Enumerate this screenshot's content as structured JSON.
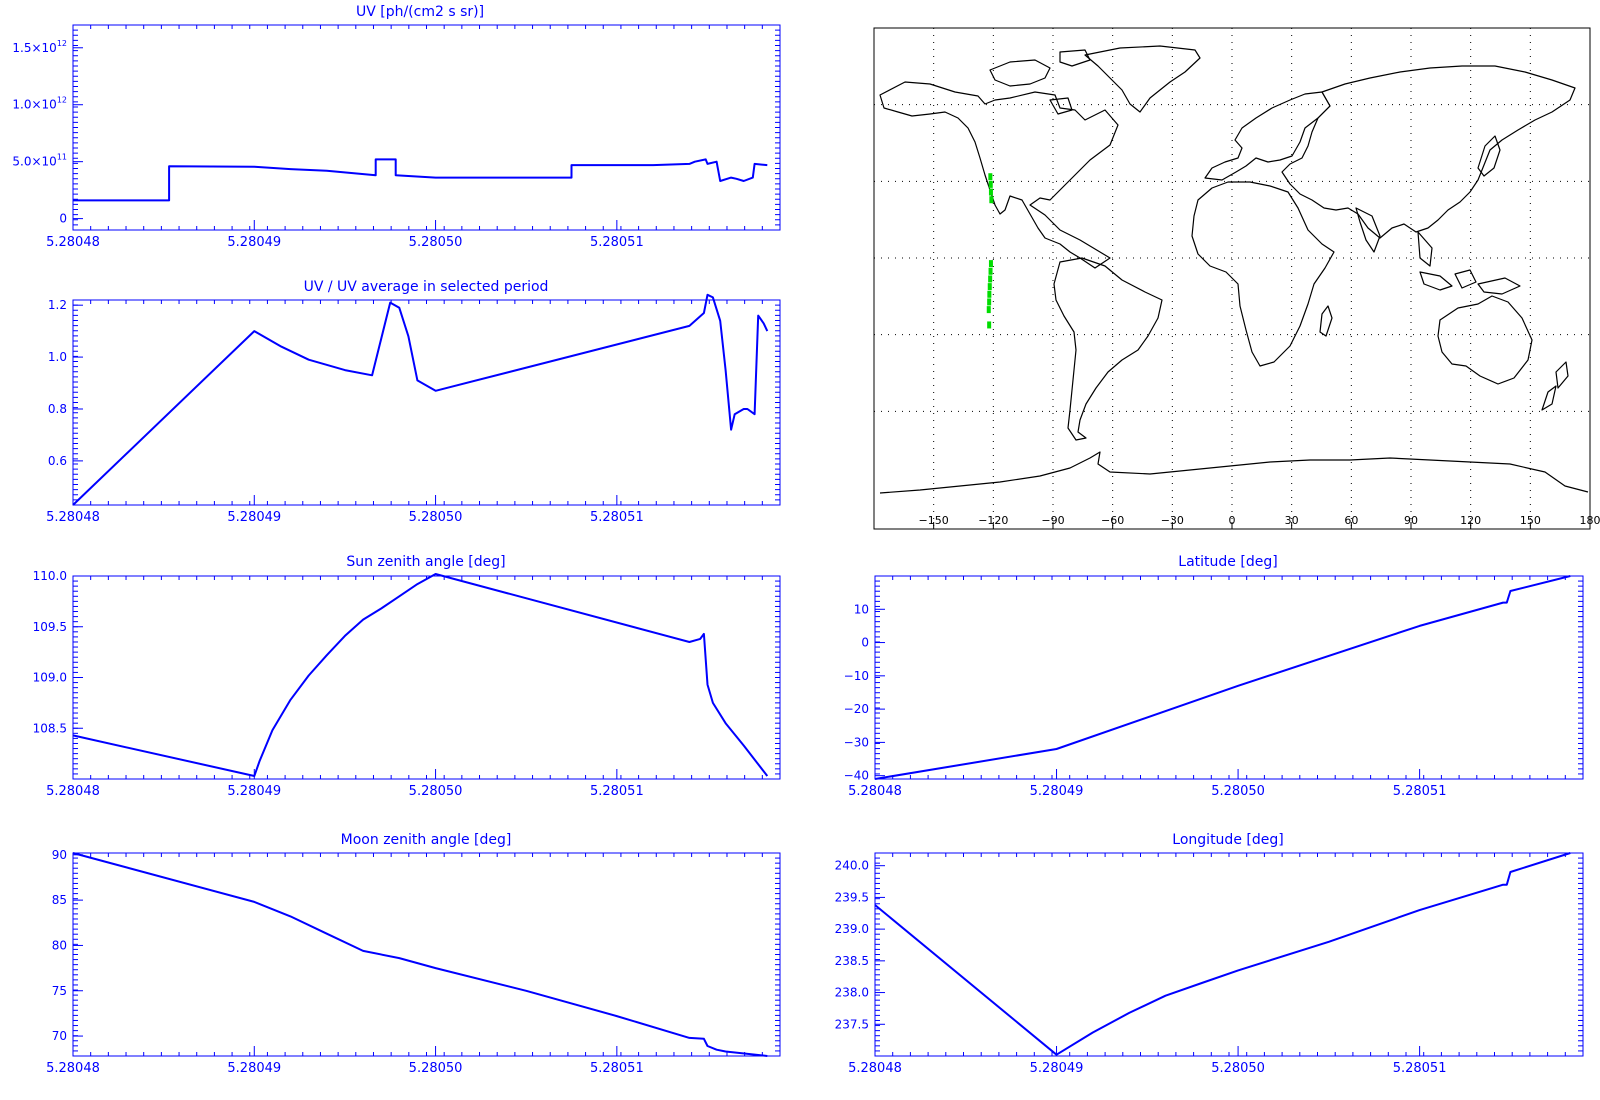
{
  "colors": {
    "plot": "#0000ff",
    "map_frame": "#000000",
    "coastline": "#000000",
    "track": "#00dd00",
    "background": "#ffffff"
  },
  "chart_data": [
    {
      "id": "uv",
      "type": "line",
      "title": "UV [ph/(cm2 s sr)]",
      "x_ticks": [
        "5.28048",
        "5.28049",
        "5.28050",
        "5.28051"
      ],
      "x_tick_values": [
        5.28048,
        5.28049,
        5.2805,
        5.28051
      ],
      "xlim": [
        5.28048,
        5.280519
      ],
      "y_ticks": [
        {
          "value": 0,
          "mantissa": "0",
          "exp": ""
        },
        {
          "value": 500000000000.0,
          "mantissa": "5.0×10",
          "exp": "11"
        },
        {
          "value": 1000000000000.0,
          "mantissa": "1.0×10",
          "exp": "12"
        },
        {
          "value": 1500000000000.0,
          "mantissa": "1.5×10",
          "exp": "12"
        }
      ],
      "ylim": [
        -100000000000.0,
        1700000000000.0
      ],
      "series": [
        {
          "x": [
            5.28048,
            5.2804853,
            5.2804853,
            5.28049,
            5.280492,
            5.280494,
            5.2804967,
            5.2804967,
            5.2804975,
            5.2804978,
            5.2804978,
            5.2805,
            5.2805075,
            5.2805075,
            5.280512,
            5.280514,
            5.2805143,
            5.2805149,
            5.280515,
            5.2805155,
            5.2805157,
            5.2805163,
            5.2805166,
            5.280517,
            5.2805175,
            5.2805176,
            5.2805183
          ],
          "y": [
            160000000000.0,
            160000000000.0,
            460000000000.0,
            455000000000.0,
            435000000000.0,
            420000000000.0,
            380000000000.0,
            520000000000.0,
            520000000000.0,
            520000000000.0,
            380000000000.0,
            360000000000.0,
            360000000000.0,
            470000000000.0,
            470000000000.0,
            480000000000.0,
            500000000000.0,
            520000000000.0,
            480000000000.0,
            500000000000.0,
            330000000000.0,
            360000000000.0,
            350000000000.0,
            330000000000.0,
            360000000000.0,
            480000000000.0,
            470000000000.0
          ]
        }
      ]
    },
    {
      "id": "uv_ratio",
      "type": "line",
      "title": "UV / UV average in selected period",
      "x_ticks": [
        "5.28048",
        "5.28049",
        "5.28050",
        "5.28051"
      ],
      "x_tick_values": [
        5.28048,
        5.28049,
        5.2805,
        5.28051
      ],
      "xlim": [
        5.28048,
        5.280519
      ],
      "y_ticks": [
        {
          "value": 0.6,
          "label": "0.6"
        },
        {
          "value": 0.8,
          "label": "0.8"
        },
        {
          "value": 1.0,
          "label": "1.0"
        },
        {
          "value": 1.2,
          "label": "1.2"
        }
      ],
      "ylim": [
        0.43,
        1.22
      ],
      "series": [
        {
          "x": [
            5.28048,
            5.28049,
            5.2804915,
            5.280493,
            5.280495,
            5.2804965,
            5.2804975,
            5.280498,
            5.2804985,
            5.280499,
            5.2805,
            5.280514,
            5.2805148,
            5.280515,
            5.2805153,
            5.2805157,
            5.280516,
            5.2805163,
            5.2805165,
            5.280517,
            5.2805172,
            5.2805176,
            5.2805178,
            5.2805181,
            5.2805183
          ],
          "y": [
            0.43,
            1.1,
            1.04,
            0.99,
            0.95,
            0.93,
            1.21,
            1.19,
            1.08,
            0.91,
            0.87,
            1.12,
            1.17,
            1.24,
            1.23,
            1.14,
            0.95,
            0.72,
            0.78,
            0.8,
            0.8,
            0.78,
            1.16,
            1.13,
            1.1
          ]
        }
      ]
    },
    {
      "id": "sun_zenith",
      "type": "line",
      "title": "Sun zenith angle [deg]",
      "x_ticks": [
        "5.28048",
        "5.28049",
        "5.28050",
        "5.28051"
      ],
      "x_tick_values": [
        5.28048,
        5.28049,
        5.2805,
        5.28051
      ],
      "xlim": [
        5.28048,
        5.280519
      ],
      "y_ticks": [
        {
          "value": 108.5,
          "label": "108.5"
        },
        {
          "value": 109.0,
          "label": "109.0"
        },
        {
          "value": 109.5,
          "label": "109.5"
        },
        {
          "value": 110.0,
          "label": "110.0"
        }
      ],
      "ylim": [
        108.0,
        110.0
      ],
      "series": [
        {
          "x": [
            5.28048,
            5.28049,
            5.2804903,
            5.280491,
            5.280492,
            5.280493,
            5.280494,
            5.280495,
            5.280496,
            5.280497,
            5.280498,
            5.280499,
            5.2805,
            5.280514,
            5.2805146,
            5.2805148,
            5.280515,
            5.2805153,
            5.280516,
            5.280517,
            5.2805183
          ],
          "y": [
            108.43,
            108.03,
            108.18,
            108.48,
            108.78,
            109.02,
            109.22,
            109.41,
            109.57,
            109.68,
            109.8,
            109.92,
            110.02,
            109.35,
            109.38,
            109.43,
            108.93,
            108.75,
            108.55,
            108.33,
            108.03
          ]
        }
      ]
    },
    {
      "id": "moon_zenith",
      "type": "line",
      "title": "Moon zenith angle [deg]",
      "x_ticks": [
        "5.28048",
        "5.28049",
        "5.28050",
        "5.28051"
      ],
      "x_tick_values": [
        5.28048,
        5.28049,
        5.2805,
        5.28051
      ],
      "xlim": [
        5.28048,
        5.280519
      ],
      "y_ticks": [
        {
          "value": 70,
          "label": "70"
        },
        {
          "value": 75,
          "label": "75"
        },
        {
          "value": 80,
          "label": "80"
        },
        {
          "value": 85,
          "label": "85"
        },
        {
          "value": 90,
          "label": "90"
        }
      ],
      "ylim": [
        67.8,
        90.2
      ],
      "series": [
        {
          "x": [
            5.28048,
            5.28049,
            5.280492,
            5.280494,
            5.280496,
            5.280498,
            5.2805,
            5.280505,
            5.28051,
            5.280514,
            5.2805148,
            5.280515,
            5.2805155,
            5.280516,
            5.2805183
          ],
          "y": [
            90.2,
            84.8,
            83.2,
            81.3,
            79.4,
            78.6,
            77.5,
            75.0,
            72.2,
            69.8,
            69.7,
            68.9,
            68.5,
            68.3,
            67.8
          ]
        }
      ]
    },
    {
      "id": "latitude",
      "type": "line",
      "title": "Latitude [deg]",
      "x_ticks": [
        "5.28048",
        "5.28049",
        "5.28050",
        "5.28051"
      ],
      "x_tick_values": [
        5.28048,
        5.28049,
        5.2805,
        5.28051
      ],
      "xlim": [
        5.28048,
        5.280519
      ],
      "y_ticks": [
        {
          "value": -40,
          "label": "−40"
        },
        {
          "value": -30,
          "label": "−30"
        },
        {
          "value": -20,
          "label": "−20"
        },
        {
          "value": -10,
          "label": "−10"
        },
        {
          "value": 0,
          "label": "0"
        },
        {
          "value": 10,
          "label": "10"
        }
      ],
      "ylim": [
        -41,
        20
      ],
      "series": [
        {
          "x": [
            5.28048,
            5.28049,
            5.2805,
            5.28051,
            5.2805146,
            5.2805148,
            5.280515,
            5.2805183
          ],
          "y": [
            -41,
            -32,
            -13,
            5,
            12,
            12,
            15.5,
            20
          ]
        }
      ]
    },
    {
      "id": "longitude",
      "type": "line",
      "title": "Longitude [deg]",
      "x_ticks": [
        "5.28048",
        "5.28049",
        "5.28050",
        "5.28051"
      ],
      "x_tick_values": [
        5.28048,
        5.28049,
        5.2805,
        5.28051
      ],
      "xlim": [
        5.28048,
        5.280519
      ],
      "y_ticks": [
        {
          "value": 237.5,
          "label": "237.5"
        },
        {
          "value": 238.0,
          "label": "238.0"
        },
        {
          "value": 238.5,
          "label": "238.5"
        },
        {
          "value": 239.0,
          "label": "239.0"
        },
        {
          "value": 239.5,
          "label": "239.5"
        },
        {
          "value": 240.0,
          "label": "240.0"
        }
      ],
      "ylim": [
        237.0,
        240.2
      ],
      "series": [
        {
          "x": [
            5.28048,
            5.28049,
            5.280492,
            5.280494,
            5.280496,
            5.280498,
            5.2805,
            5.280505,
            5.28051,
            5.2805146,
            5.2805148,
            5.280515,
            5.2805183
          ],
          "y": [
            239.38,
            237.02,
            237.37,
            237.68,
            237.95,
            238.15,
            238.35,
            238.8,
            239.3,
            239.7,
            239.7,
            239.9,
            240.2
          ]
        }
      ]
    },
    {
      "id": "map",
      "type": "scatter",
      "projection": "cylindrical",
      "x_ticks": [
        "−150",
        "−120",
        "−90",
        "−60",
        "−30",
        "0",
        "30",
        "60",
        "90",
        "120",
        "150",
        "180"
      ],
      "x_tick_values": [
        -150,
        -120,
        -90,
        -60,
        -30,
        0,
        30,
        60,
        90,
        120,
        150,
        180
      ],
      "xlim": [
        -180,
        180
      ],
      "ylim": [
        -90,
        90
      ],
      "grid": "dotted, every 30 degrees",
      "series": [
        {
          "name": "",
          "x": [
            -121.5,
            -121.3,
            -121.2,
            -121.0,
            -121.2,
            -121.4,
            -121.6,
            -121.8,
            -122.0,
            -122.1,
            -122.3,
            -122.1
          ],
          "y": [
            32,
            29,
            26,
            23,
            -2,
            -5,
            -8,
            -11,
            -14,
            -17,
            -20,
            -26
          ]
        }
      ]
    }
  ]
}
